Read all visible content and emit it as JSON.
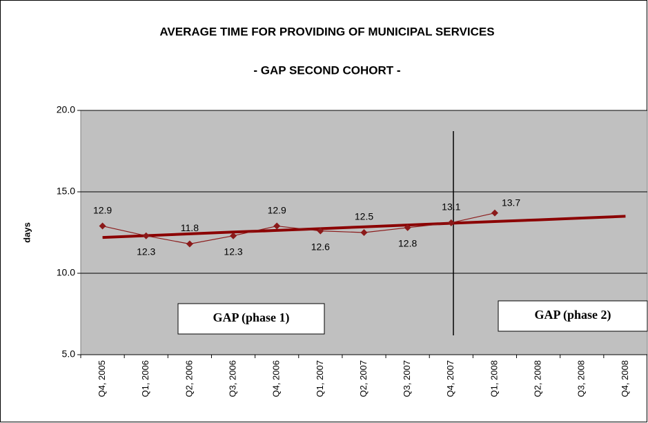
{
  "chart_data": {
    "type": "line",
    "title": "AVERAGE TIME FOR PROVIDING OF MUNICIPAL SERVICES",
    "subtitle": "- GAP  SECOND COHORT -",
    "y_label": "days",
    "categories": [
      "Q4, 2005",
      "Q1, 2006",
      "Q2, 2006",
      "Q3, 2006",
      "Q4, 2006",
      "Q1, 2007",
      "Q2, 2007",
      "Q3, 2007",
      "Q4, 2007",
      "Q1, 2008",
      "Q2, 2008",
      "Q3, 2008",
      "Q4, 2008"
    ],
    "series": [
      {
        "color": "#8b1a1a",
        "values": [
          12.9,
          12.3,
          11.8,
          12.3,
          12.9,
          12.6,
          12.5,
          12.8,
          13.1,
          13.7,
          null,
          null,
          null
        ]
      },
      {
        "color": "#8b0000",
        "values": [
          12.2,
          12.31,
          12.42,
          12.53,
          12.63,
          12.74,
          12.85,
          12.96,
          13.07,
          13.18,
          13.28,
          13.39,
          13.5
        ]
      }
    ],
    "ylim": [
      5,
      20
    ],
    "yticks": [
      {
        "value": 5,
        "label": "5.0"
      },
      {
        "value": 10,
        "label": "10.0"
      },
      {
        "value": 15,
        "label": "15.0"
      },
      {
        "value": 20,
        "label": "20.0"
      }
    ],
    "grid": true,
    "annotations": [
      "GAP (phase 1)",
      "GAP (phase 2)"
    ]
  }
}
